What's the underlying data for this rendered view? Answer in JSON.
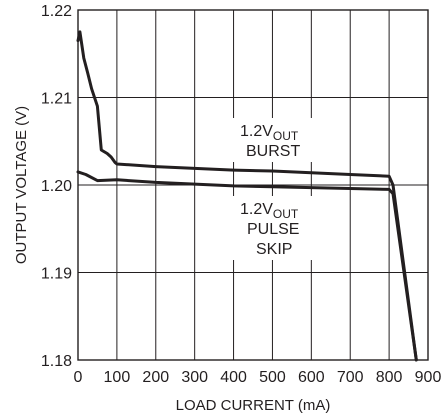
{
  "chart_data": {
    "type": "line",
    "xlabel": "LOAD CURRENT (mA)",
    "ylabel": "OUTPUT VOLTAGE (V)",
    "xlim": [
      0,
      900
    ],
    "ylim": [
      1.18,
      1.22
    ],
    "x_ticks": [
      "0",
      "100",
      "200",
      "300",
      "400",
      "500",
      "600",
      "700",
      "800",
      "900"
    ],
    "y_ticks": [
      "1.18",
      "1.19",
      "1.20",
      "1.21",
      "1.22"
    ],
    "grid": true,
    "series": [
      {
        "points": [
          [
            0,
            1.2165
          ],
          [
            5,
            1.2175
          ],
          [
            15,
            1.2145
          ],
          [
            25,
            1.2128
          ],
          [
            35,
            1.211
          ],
          [
            50,
            1.209
          ],
          [
            60,
            1.204
          ],
          [
            75,
            1.2036
          ],
          [
            85,
            1.2032
          ],
          [
            95,
            1.2026
          ],
          [
            100,
            1.2024
          ],
          [
            200,
            1.2021
          ],
          [
            300,
            1.2019
          ],
          [
            400,
            1.2017
          ],
          [
            500,
            1.2016
          ],
          [
            600,
            1.2014
          ],
          [
            700,
            1.2012
          ],
          [
            800,
            1.201
          ],
          [
            810,
            1.2
          ],
          [
            870,
            1.18
          ]
        ]
      },
      {
        "points": [
          [
            0,
            1.2015
          ],
          [
            20,
            1.2012
          ],
          [
            50,
            1.2005
          ],
          [
            100,
            1.2006
          ],
          [
            200,
            1.2003
          ],
          [
            300,
            1.2001
          ],
          [
            400,
            1.1999
          ],
          [
            500,
            1.1998
          ],
          [
            600,
            1.1997
          ],
          [
            700,
            1.1996
          ],
          [
            800,
            1.1995
          ],
          [
            810,
            1.199
          ],
          [
            870,
            1.18
          ]
        ]
      }
    ],
    "annotations": [
      {
        "id": "burst",
        "lines": [
          "1.2V",
          "OUT",
          "BURST"
        ]
      },
      {
        "id": "pulse",
        "lines": [
          "1.2V",
          "OUT",
          "PULSE",
          "SKIP"
        ]
      }
    ]
  }
}
